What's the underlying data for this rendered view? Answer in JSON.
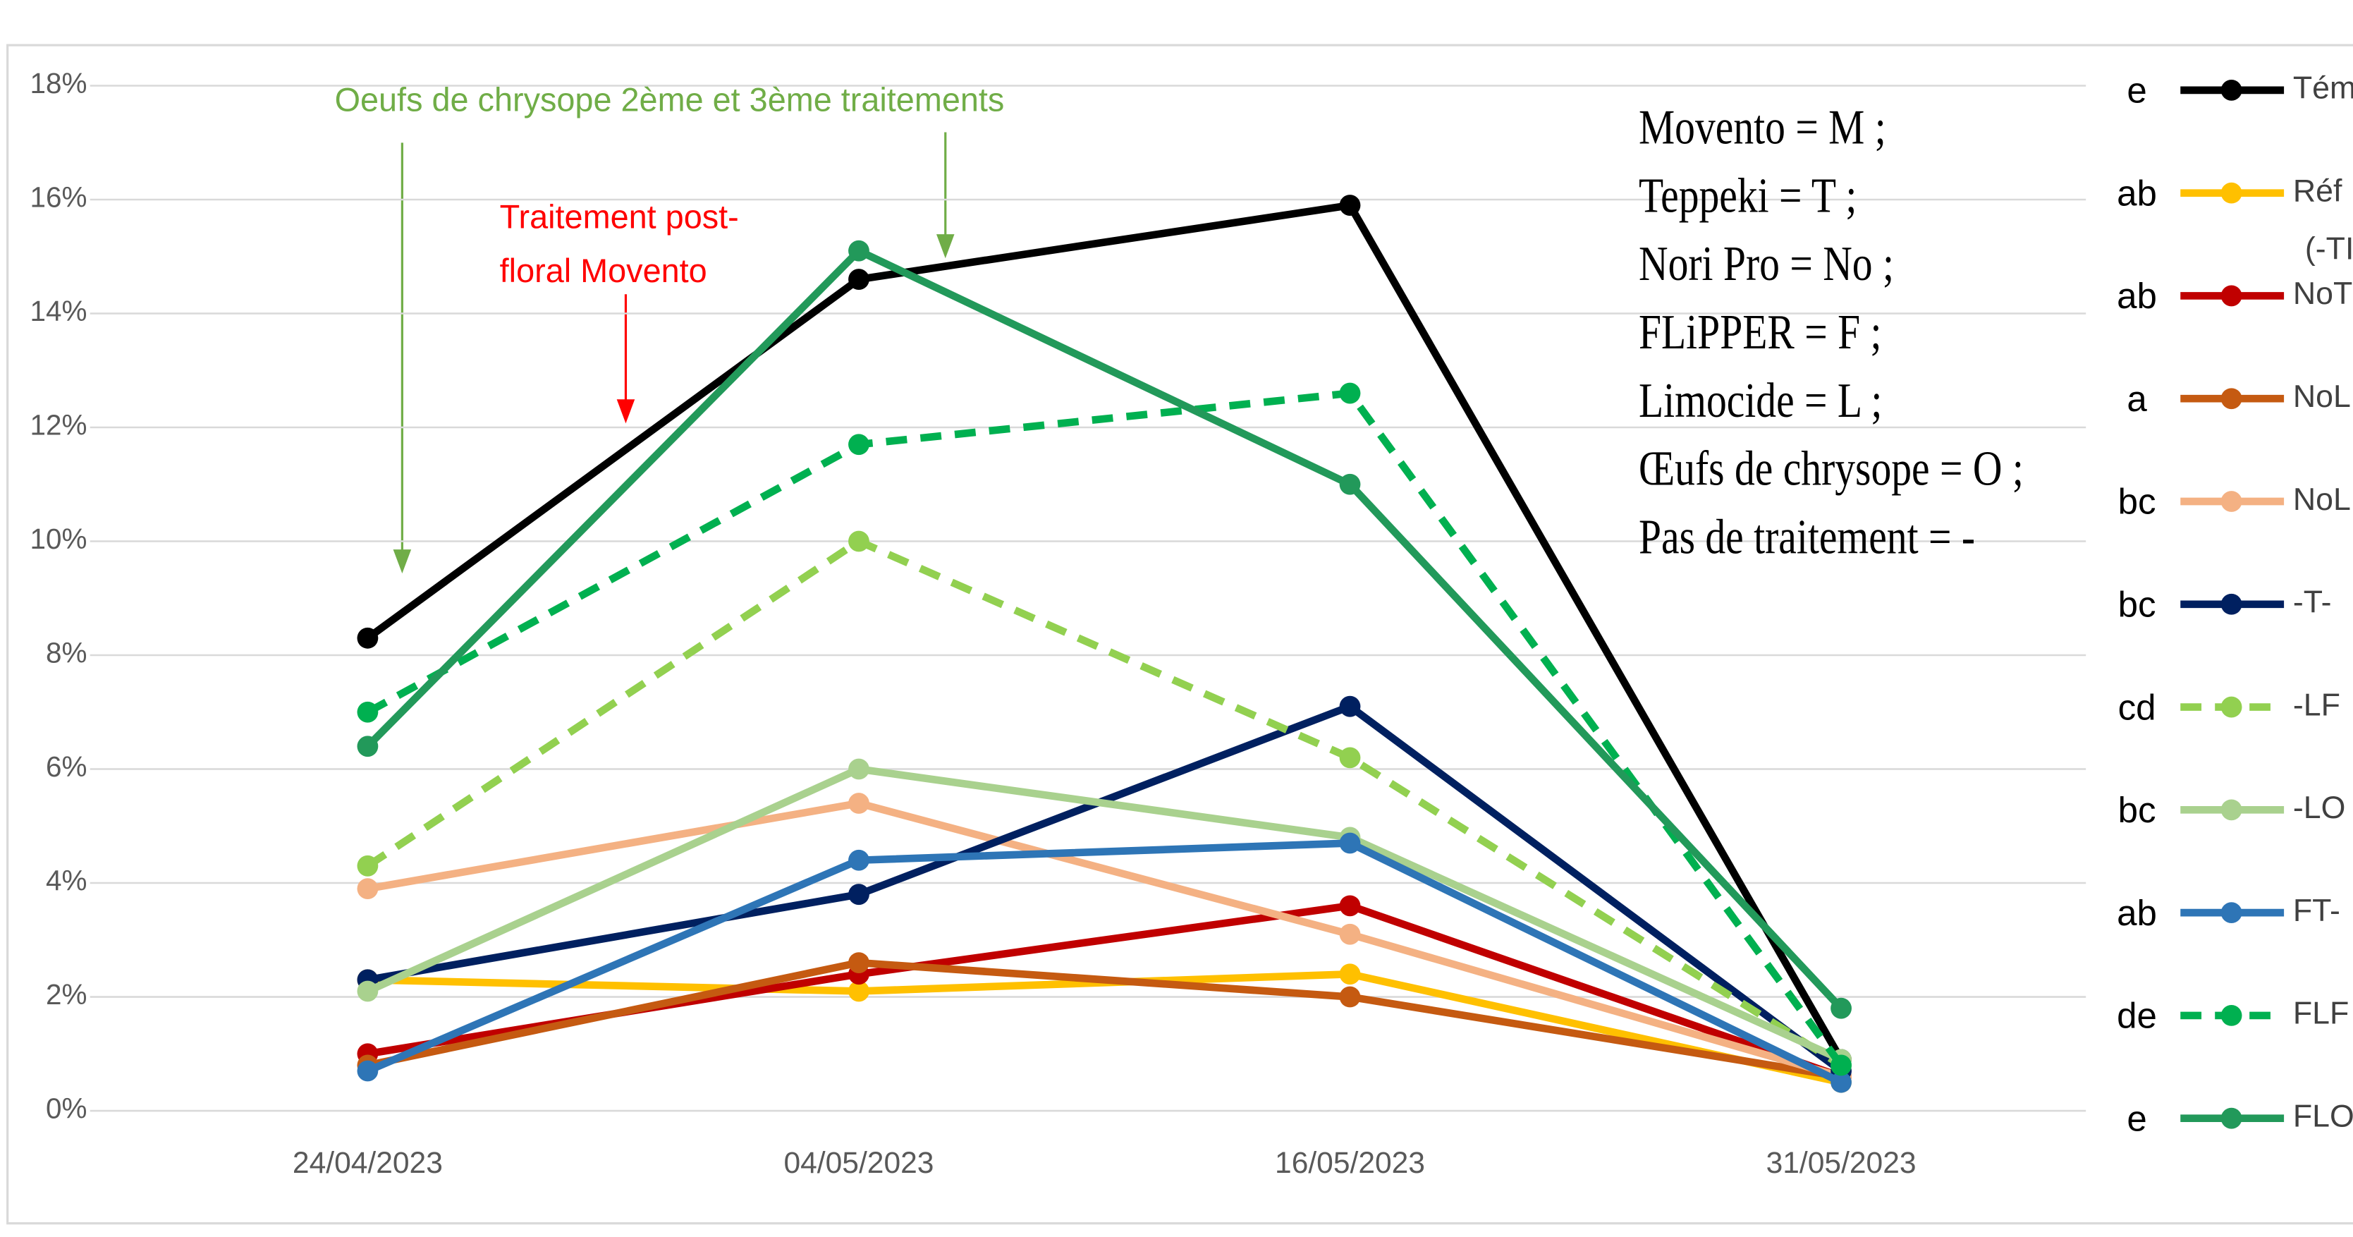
{
  "chart_data": {
    "type": "line",
    "categories": [
      "24/04/2023",
      "04/05/2023",
      "16/05/2023",
      "31/05/2023"
    ],
    "ylim": [
      0,
      18
    ],
    "yticks": [
      {
        "value": 0,
        "label": "0%"
      },
      {
        "value": 2,
        "label": "2%"
      },
      {
        "value": 4,
        "label": "4%"
      },
      {
        "value": 6,
        "label": "6%"
      },
      {
        "value": 8,
        "label": "8%"
      },
      {
        "value": 10,
        "label": "10%"
      },
      {
        "value": 12,
        "label": "12%"
      },
      {
        "value": 14,
        "label": "14%"
      },
      {
        "value": 16,
        "label": "16%"
      },
      {
        "value": 18,
        "label": "18%"
      }
    ],
    "grid": true,
    "legend": "right",
    "series": [
      {
        "name": "Tém",
        "group": "e",
        "color": "#000000",
        "dash": false,
        "values": [
          8.3,
          14.6,
          15.9,
          0.9
        ]
      },
      {
        "name": "Réf",
        "group": "ab",
        "color": "#FFC000",
        "dash": false,
        "values": [
          2.3,
          2.1,
          2.4,
          0.5
        ]
      },
      {
        "name": "NoT",
        "group": "ab",
        "color": "#C00000",
        "dash": false,
        "values": [
          1.0,
          2.4,
          3.6,
          0.6
        ]
      },
      {
        "name": "NoL",
        "group": "a",
        "color": "#C55A11",
        "dash": false,
        "values": [
          0.8,
          2.6,
          2.0,
          0.6
        ]
      },
      {
        "name": "NoL",
        "group": "bc",
        "color": "#F4B183",
        "dash": false,
        "values": [
          3.9,
          5.4,
          3.1,
          0.6
        ]
      },
      {
        "name": "-T-",
        "group": "bc",
        "color": "#002060",
        "dash": false,
        "values": [
          2.3,
          3.8,
          7.1,
          0.7
        ]
      },
      {
        "name": "-LF",
        "group": "cd",
        "color": "#92D050",
        "dash": true,
        "values": [
          4.3,
          10.0,
          6.2,
          0.8
        ]
      },
      {
        "name": "-LO",
        "group": "bc",
        "color": "#A9D18E",
        "dash": false,
        "values": [
          2.1,
          6.0,
          4.8,
          0.9
        ]
      },
      {
        "name": "FT-",
        "group": "ab",
        "color": "#2E75B6",
        "dash": false,
        "values": [
          0.7,
          4.4,
          4.7,
          0.5
        ]
      },
      {
        "name": "FLF",
        "group": "de",
        "color": "#00B050",
        "dash": true,
        "values": [
          7.0,
          11.7,
          12.6,
          0.8
        ]
      },
      {
        "name": "FLO",
        "group": "e",
        "color": "#22995A",
        "dash": false,
        "values": [
          6.4,
          15.1,
          11.0,
          1.8
        ]
      }
    ],
    "legend_note": "(-TI",
    "annotations": [
      {
        "text": "Oeufs de chrysope 2ème et 3ème traitements",
        "color": "#70AD47"
      },
      {
        "text": "Traitement post-",
        "color": "#FF0000"
      },
      {
        "text": "floral Movento",
        "color": "#FF0000"
      }
    ],
    "key": [
      "Movento = M ;",
      "Teppeki = T ;",
      "Nori Pro = No ;",
      "FLiPPER = F ;",
      "Limocide = L ;",
      "Œufs de chrysope = O ;",
      "Pas de traitement =   -"
    ]
  }
}
